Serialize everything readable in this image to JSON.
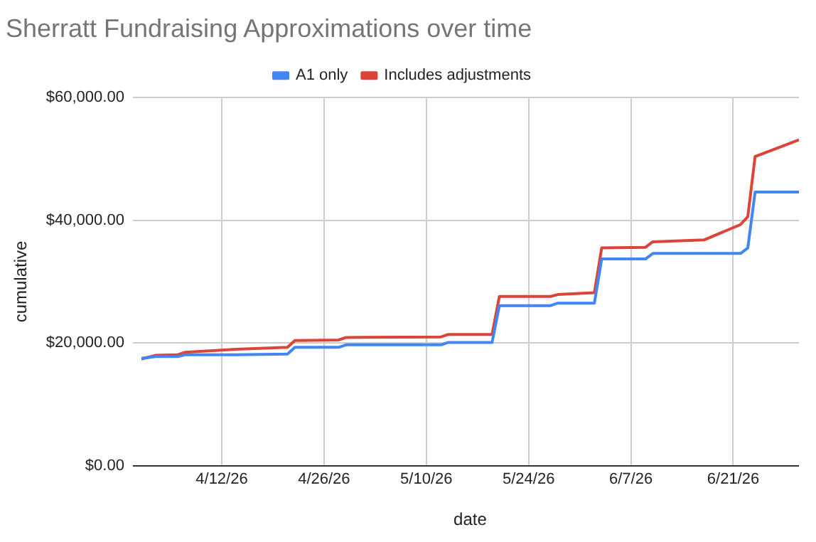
{
  "chart_data": {
    "type": "line",
    "title": "Sherratt Fundraising Approximations over time",
    "xlabel": "date",
    "ylabel": "cumulative",
    "series": [
      {
        "name": "A1 only",
        "color": "#4285f4",
        "x": [
          "--04-01",
          "--04-03",
          "--04-06",
          "--04-07",
          "--04-14",
          "--04-21",
          "--04-22",
          "--04-28",
          "--04-29",
          "--05-12",
          "--05-13",
          "--05-19",
          "--05-20",
          "--05-27",
          "--05-28",
          "--06-02",
          "--06-03",
          "--06-09",
          "--06-10",
          "--06-22",
          "--06-23",
          "--06-24",
          "--06-30"
        ],
        "values": [
          17500,
          17800,
          17800,
          18100,
          18100,
          18200,
          19300,
          19300,
          19700,
          19700,
          20100,
          20100,
          26100,
          26100,
          26500,
          26500,
          33700,
          33700,
          34600,
          34600,
          35500,
          44600,
          44600
        ]
      },
      {
        "name": "Includes adjustments",
        "color": "#db4437",
        "x": [
          "--04-01",
          "--04-03",
          "--04-06",
          "--04-07",
          "--04-14",
          "--04-21",
          "--04-22",
          "--04-28",
          "--04-29",
          "--05-12",
          "--05-13",
          "--05-19",
          "--05-20",
          "--05-27",
          "--05-28",
          "--06-02",
          "--06-03",
          "--06-09",
          "--06-10",
          "--06-17",
          "--06-22",
          "--06-23",
          "--06-24",
          "--06-30"
        ],
        "values": [
          17400,
          18000,
          18100,
          18500,
          19000,
          19300,
          20400,
          20500,
          20900,
          21000,
          21400,
          21400,
          27600,
          27600,
          27900,
          28200,
          35500,
          35600,
          36500,
          36800,
          39300,
          40600,
          50400,
          53100
        ]
      }
    ],
    "xlim": [
      "--04-01",
      "--06-30"
    ],
    "xticks": [
      {
        "value": "--04-12",
        "label": "4/12/26"
      },
      {
        "value": "--04-26",
        "label": "4/26/26"
      },
      {
        "value": "--05-10",
        "label": "5/10/26"
      },
      {
        "value": "--05-24",
        "label": "5/24/26"
      },
      {
        "value": "--06-07",
        "label": "6/7/26"
      },
      {
        "value": "--06-21",
        "label": "6/21/26"
      }
    ],
    "ylim": [
      0,
      60000
    ],
    "yticks": [
      {
        "value": 0,
        "label": "$0.00"
      },
      {
        "value": 20000,
        "label": "$20,000.00"
      },
      {
        "value": 40000,
        "label": "$40,000.00"
      },
      {
        "value": 60000,
        "label": "$60,000.00"
      }
    ],
    "grid": true,
    "legend": "top",
    "marker": "none",
    "line_style": "solid"
  }
}
